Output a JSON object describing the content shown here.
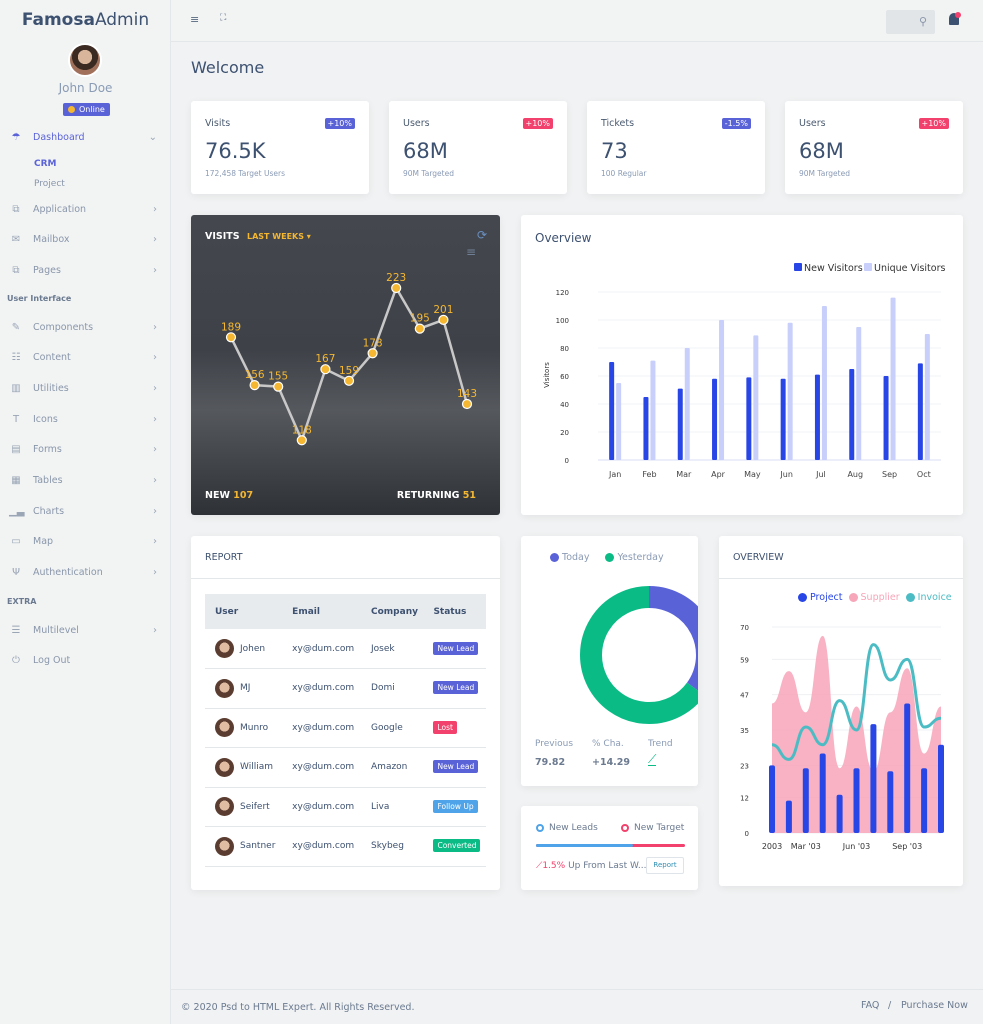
{
  "brand": {
    "bold": "Famosa",
    "light": "Admin"
  },
  "user": {
    "name": "John Doe",
    "status": "Online"
  },
  "sidebar": {
    "dashboard": {
      "label": "Dashboard",
      "subs": [
        "CRM",
        "Project"
      ]
    },
    "items": [
      {
        "label": "Application",
        "icon": "copy-icon"
      },
      {
        "label": "Mailbox",
        "icon": "mail-icon"
      },
      {
        "label": "Pages",
        "icon": "copy-icon"
      }
    ],
    "section_ui": "User Interface",
    "ui_items": [
      {
        "label": "Components",
        "icon": "paint-icon"
      },
      {
        "label": "Content",
        "icon": "content-icon"
      },
      {
        "label": "Utilities",
        "icon": "utilities-icon"
      },
      {
        "label": "Icons",
        "icon": "text-icon"
      },
      {
        "label": "Forms",
        "icon": "forms-icon"
      },
      {
        "label": "Tables",
        "icon": "table-icon"
      },
      {
        "label": "Charts",
        "icon": "chart-icon"
      },
      {
        "label": "Map",
        "icon": "map-icon"
      },
      {
        "label": "Authentication",
        "icon": "auth-icon"
      }
    ],
    "section_extra": "EXTRA",
    "extra_items": [
      {
        "label": "Multilevel",
        "icon": "layers-icon"
      },
      {
        "label": "Log Out",
        "icon": "power-icon"
      }
    ]
  },
  "page_title": "Welcome",
  "stats": [
    {
      "label": "Visits",
      "badge": "+10%",
      "badge_color": "#5a62d8",
      "value": "76.5K",
      "sub": "172,458 Target Users"
    },
    {
      "label": "Users",
      "badge": "+10%",
      "badge_color": "#f1416c",
      "value": "68M",
      "sub": "90M Targeted"
    },
    {
      "label": "Tickets",
      "badge": "-1.5%",
      "badge_color": "#5a62d8",
      "value": "73",
      "sub": "100 Regular"
    },
    {
      "label": "Users",
      "badge": "+10%",
      "badge_color": "#f1416c",
      "value": "68M",
      "sub": "90M Targeted"
    }
  ],
  "visits": {
    "title": "VISITS",
    "dropdown": "LAST WEEKS",
    "new_label": "NEW",
    "new_value": "107",
    "returning_label": "RETURNING",
    "returning_value": "51"
  },
  "report": {
    "title": "REPORT",
    "columns": [
      "User",
      "Email",
      "Company",
      "Status"
    ],
    "rows": [
      {
        "user": "Johen",
        "email": "xy@dum.com",
        "company": "Josek",
        "status": "New Lead",
        "color": "#5a62d8"
      },
      {
        "user": "MJ",
        "email": "xy@dum.com",
        "company": "Domi",
        "status": "New Lead",
        "color": "#5a62d8"
      },
      {
        "user": "Munro",
        "email": "xy@dum.com",
        "company": "Google",
        "status": "Lost",
        "color": "#f1416c"
      },
      {
        "user": "William",
        "email": "xy@dum.com",
        "company": "Amazon",
        "status": "New Lead",
        "color": "#5a62d8"
      },
      {
        "user": "Seifert",
        "email": "xy@dum.com",
        "company": "Liva",
        "status": "Follow Up",
        "color": "#4fa3e8"
      },
      {
        "user": "Santner",
        "email": "xy@dum.com",
        "company": "Skybeg",
        "status": "Converted",
        "color": "#0bbb86"
      }
    ]
  },
  "donut_card": {
    "previous_label": "Previous",
    "previous_value": "79.82",
    "change_label": "% Cha.",
    "change_value": "+14.29",
    "trend_label": "Trend"
  },
  "leads": {
    "new_leads": "New Leads",
    "new_target": "New Target",
    "leads_share": 65,
    "change": "1.5%",
    "change_text": "Up From Last W...",
    "button": "Report"
  },
  "footer": {
    "copyright": "© 2020 Psd to HTML Expert. All Rights Reserved.",
    "faq": "FAQ",
    "sep": "/",
    "purchase": "Purchase Now"
  },
  "chart_data": [
    {
      "type": "line",
      "name": "visits",
      "values": [
        189,
        156,
        155,
        118,
        167,
        159,
        178,
        223,
        195,
        201,
        143
      ],
      "color": "#f5b731"
    },
    {
      "type": "bar",
      "title": "Overview",
      "ylabel": "Visitors",
      "ylim": [
        0,
        120
      ],
      "yticks": [
        0,
        20,
        40,
        60,
        80,
        100,
        120
      ],
      "grid": true,
      "legend": "top-right",
      "categories": [
        "Jan",
        "Feb",
        "Mar",
        "Apr",
        "May",
        "Jun",
        "Jul",
        "Aug",
        "Sep",
        "Oct"
      ],
      "series": [
        {
          "name": "New Visitors",
          "color": "#2845e6",
          "values": [
            70,
            45,
            51,
            58,
            59,
            58,
            61,
            65,
            60,
            69
          ]
        },
        {
          "name": "Unique Visitors",
          "color": "#c7cffa",
          "values": [
            55,
            71,
            80,
            100,
            89,
            98,
            110,
            95,
            116,
            90
          ]
        }
      ]
    },
    {
      "type": "pie",
      "donut": true,
      "legend": "top",
      "series": [
        {
          "name": "Today",
          "value": 35,
          "color": "#5a62d8"
        },
        {
          "name": "Yesterday",
          "value": 65,
          "color": "#0bbb86"
        }
      ]
    },
    {
      "type": "bar",
      "title": "OVERVIEW",
      "legend": "top-right",
      "ylim": [
        0,
        70
      ],
      "yticks": [
        0,
        12,
        23,
        35,
        47,
        59,
        70
      ],
      "grid": true,
      "x_tick_labels": [
        "2003",
        "Mar '03",
        "Jun '03",
        "Sep '03"
      ],
      "x": [
        "01/01/2003",
        "02/01/2003",
        "03/01/2003",
        "04/01/2003",
        "05/01/2003",
        "06/01/2003",
        "07/01/2003",
        "08/01/2003",
        "09/01/2003",
        "10/01/2003",
        "11/01/2003"
      ],
      "series": [
        {
          "name": "Project",
          "type": "bar",
          "color": "#2845e6",
          "values": [
            23,
            11,
            22,
            27,
            13,
            22,
            37,
            21,
            44,
            22,
            30
          ]
        },
        {
          "name": "Supplier",
          "type": "area",
          "color": "#f7a5b8",
          "values": [
            44,
            55,
            41,
            67,
            22,
            43,
            21,
            41,
            56,
            27,
            43
          ]
        },
        {
          "name": "Invoice",
          "type": "line",
          "color": "#4cbcc4",
          "values": [
            30,
            25,
            36,
            30,
            45,
            35,
            64,
            52,
            59,
            36,
            39
          ]
        }
      ]
    }
  ]
}
